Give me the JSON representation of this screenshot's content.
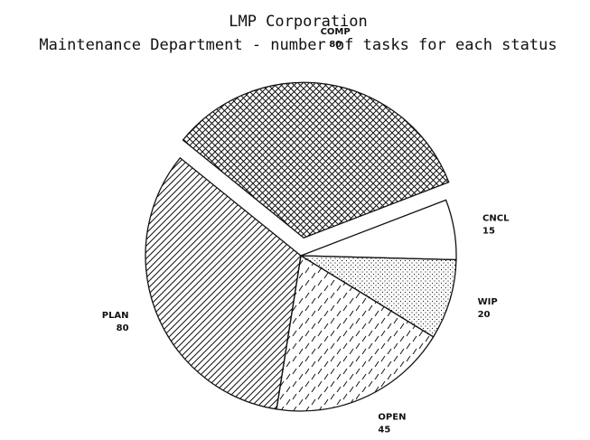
{
  "chart_data": {
    "type": "pie",
    "title": "LMP Corporation",
    "subtitle": "Maintenance Department - number of tasks for each status",
    "categories": [
      "COMP",
      "CNCL",
      "WIP",
      "OPEN",
      "PLAN"
    ],
    "values": [
      80,
      15,
      20,
      45,
      80
    ],
    "patterns": [
      "crosshatch",
      "none",
      "dots",
      "dashes",
      "diagonal"
    ],
    "explode": [
      true,
      false,
      false,
      false,
      false
    ]
  }
}
